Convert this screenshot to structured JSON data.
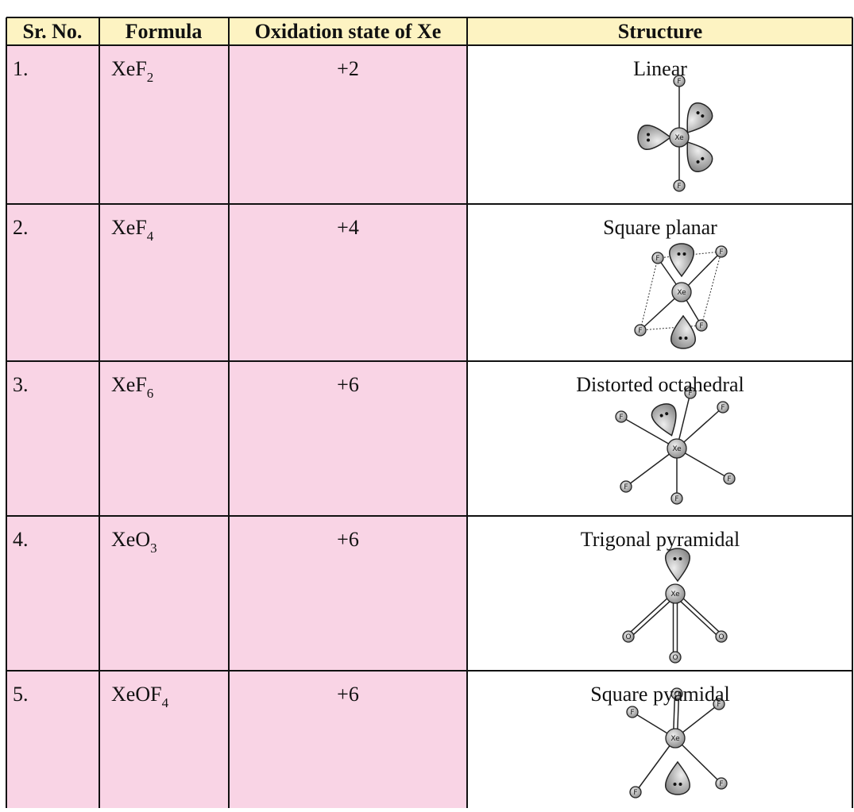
{
  "table": {
    "header": [
      "Sr. No.",
      "Formula",
      "Oxidation state of Xe",
      "Structure"
    ],
    "rows": [
      {
        "sr": "1.",
        "formula": {
          "base": "XeF",
          "sub": "2"
        },
        "oxidation": "+2",
        "structure": "Linear",
        "atoms": [
          "Xe",
          "F",
          "F"
        ]
      },
      {
        "sr": "2.",
        "formula": {
          "base": "XeF",
          "sub": "4"
        },
        "oxidation": "+4",
        "structure": "Square planar",
        "atoms": [
          "Xe",
          "F",
          "F",
          "F",
          "F"
        ]
      },
      {
        "sr": "3.",
        "formula": {
          "base": "XeF",
          "sub": "6"
        },
        "oxidation": "+6",
        "structure": "Distorted octahedral",
        "atoms": [
          "Xe",
          "F",
          "F",
          "F",
          "F",
          "F",
          "F"
        ]
      },
      {
        "sr": "4.",
        "formula": {
          "base": "XeO",
          "sub": "3"
        },
        "oxidation": "+6",
        "structure": "Trigonal pyramidal",
        "atoms": [
          "Xe",
          "O",
          "O",
          "O"
        ]
      },
      {
        "sr": "5.",
        "formula": {
          "base": "XeOF",
          "sub": "4"
        },
        "oxidation": "+6",
        "structure": "Square pyamidal",
        "atoms": [
          "Xe",
          "O",
          "F",
          "F",
          "F",
          "F"
        ]
      }
    ]
  }
}
